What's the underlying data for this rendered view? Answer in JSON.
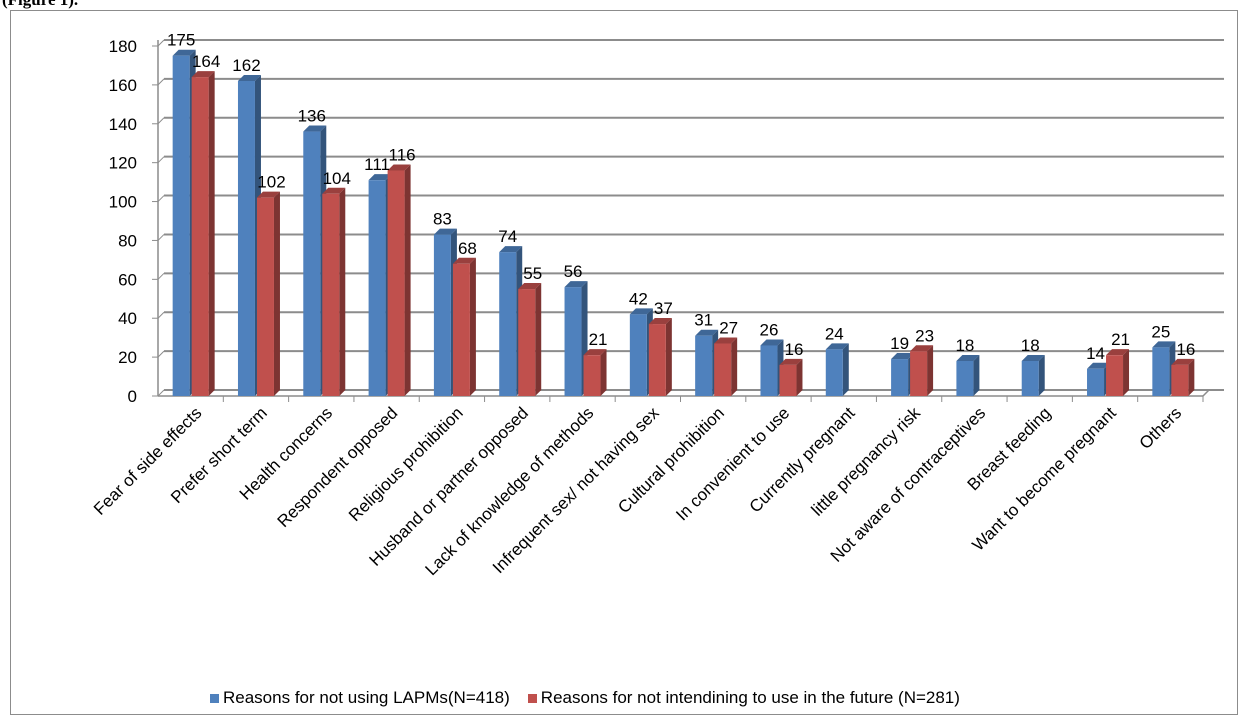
{
  "caption": "(Figure 1).",
  "colors": {
    "series1": "#4f81bd",
    "series2": "#c0504d",
    "grid": "#8c8c8c"
  },
  "chart_data": {
    "type": "bar",
    "categories": [
      "Fear of side effects",
      "Prefer short term",
      "Health concerns",
      "Respondent opposed",
      "Religious prohibition",
      "Husband or partner opposed",
      "Lack of knowledge of methods",
      "Infrequent sex/ not having sex",
      "Cultural prohibition",
      "In convenient to use",
      "Currently pregnant",
      "little pregnancy risk",
      "Not aware of contraceptives",
      "Breast feeding",
      "Want to become pregnant",
      "Others"
    ],
    "series": [
      {
        "name": "Reasons for not using LAPMs(N=418)",
        "values": [
          175,
          162,
          136,
          111,
          83,
          74,
          56,
          42,
          31,
          26,
          24,
          19,
          18,
          18,
          14,
          25
        ]
      },
      {
        "name": "Reasons for not intendining to use in the future (N=281)",
        "values": [
          164,
          102,
          104,
          116,
          68,
          55,
          21,
          37,
          27,
          16,
          null,
          23,
          null,
          null,
          21,
          16
        ]
      }
    ],
    "yticks": [
      "0",
      "20",
      "40",
      "60",
      "80",
      "100",
      "120",
      "140",
      "160",
      "180"
    ],
    "ylim": [
      0,
      180
    ],
    "grid": true,
    "legend_position": "bottom"
  }
}
